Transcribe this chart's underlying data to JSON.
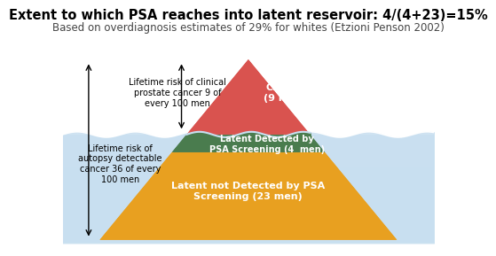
{
  "title": "Extent to which PSA reaches into latent reservoir: 4/(4+23)=15%",
  "subtitle": "Based on overdiagnosis estimates of 29% for whites (Etzioni Penson 2002)",
  "title_fontsize": 10.5,
  "subtitle_fontsize": 8.5,
  "water_color_left": "#c8dff0",
  "water_color_right": "#b0cce0",
  "clinical_color": "#d9534f",
  "latent_detected_color": "#4a7c4e",
  "latent_not_detected_color": "#e8a020",
  "clinical_label": "Clinical\n(9 men)",
  "latent_detected_label": "Latent Detected by\nPSA Screening (4  men)",
  "latent_not_detected_label": "Latent not Detected by PSA\nScreening (23 men)",
  "arrow1_text": "Lifetime risk of clinical\nprostate cancer 9 of\nevery 100 men",
  "arrow2_text": "Lifetime risk of\nautopsy detectable\ncancer 36 of every\n100 men",
  "xlim": [
    0,
    10
  ],
  "ylim": [
    0,
    10
  ]
}
